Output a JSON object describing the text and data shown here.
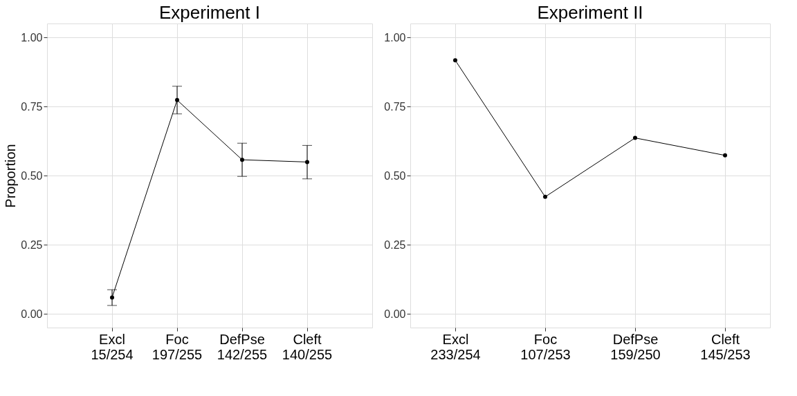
{
  "chart_data": [
    {
      "type": "line",
      "title": "Experiment I",
      "ylabel": "Proportion",
      "categories": [
        "Excl\n15/254",
        "Foc\n197/255",
        "DefPse\n142/255",
        "Cleft\n140/255"
      ],
      "series": [
        {
          "color": "#000000",
          "values": [
            0.059,
            0.773,
            0.557,
            0.549
          ],
          "errors": [
            [
              0.03,
              0.087
            ],
            [
              0.723,
              0.823
            ],
            [
              0.497,
              0.617
            ],
            [
              0.488,
              0.609
            ]
          ]
        }
      ],
      "ylim": [
        -0.05,
        1.05
      ],
      "yticks": [
        {
          "value": 0,
          "label": "0.00"
        },
        {
          "value": 0.25,
          "label": "0.25"
        },
        {
          "value": 0.5,
          "label": "0.50"
        },
        {
          "value": 0.75,
          "label": "0.75"
        },
        {
          "value": 1,
          "label": "1.00"
        }
      ],
      "grid": true,
      "marker": "circle",
      "line_style": "solid"
    },
    {
      "type": "line",
      "title": "Experiment II",
      "categories": [
        "Excl\n233/254",
        "Foc\n107/253",
        "DefPse\n159/250",
        "Cleft\n145/253"
      ],
      "series": [
        {
          "color": "#000000",
          "values": [
            0.917,
            0.423,
            0.636,
            0.573
          ]
        }
      ],
      "ylim": [
        -0.05,
        1.05
      ],
      "yticks": [
        {
          "value": 0,
          "label": "0.00"
        },
        {
          "value": 0.25,
          "label": "0.25"
        },
        {
          "value": 0.5,
          "label": "0.50"
        },
        {
          "value": 0.75,
          "label": "0.75"
        },
        {
          "value": 1,
          "label": "1.00"
        }
      ],
      "grid": true,
      "marker": "circle",
      "line_style": "solid"
    }
  ]
}
